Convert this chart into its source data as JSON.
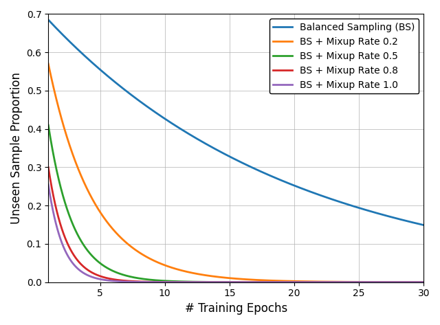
{
  "xlabel": "# Training Epochs",
  "ylabel": "Unseen Sample Proportion",
  "xlim": [
    1,
    30
  ],
  "ylim": [
    0,
    0.7
  ],
  "yticks": [
    0.0,
    0.1,
    0.2,
    0.3,
    0.4,
    0.5,
    0.6,
    0.7
  ],
  "xticks": [
    5,
    10,
    15,
    20,
    25,
    30
  ],
  "series": [
    {
      "label": "Balanced Sampling (BS)",
      "color": "#1f77b4",
      "p0": 0.685,
      "decay": 0.9488
    },
    {
      "label": "BS + Mixup Rate 0.2",
      "color": "#ff7f0e",
      "p0": 0.57,
      "decay": 0.753
    },
    {
      "label": "BS + Mixup Rate 0.5",
      "color": "#2ca02c",
      "p0": 0.41,
      "decay": 0.59
    },
    {
      "label": "BS + Mixup Rate 0.8",
      "color": "#d62728",
      "p0": 0.3,
      "decay": 0.48
    },
    {
      "label": "BS + Mixup Rate 1.0",
      "color": "#9467bd",
      "p0": 0.255,
      "decay": 0.42
    }
  ],
  "linewidth": 2.0,
  "legend_loc": "upper right",
  "legend_fontsize": 10,
  "xlabel_fontsize": 12,
  "ylabel_fontsize": 12,
  "tick_fontsize": 10,
  "grid_color": "#b0b0b0",
  "grid_linewidth": 0.5,
  "grid_alpha": 1.0
}
